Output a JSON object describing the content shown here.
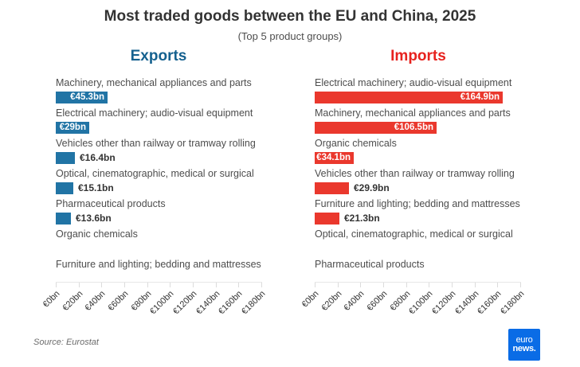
{
  "header": {
    "title": "Most traded goods between the EU and China, 2025",
    "subtitle": "(Top 5 product groups)"
  },
  "source": "Source: Eurostat",
  "logo": {
    "line1": "euro",
    "line2": "news.",
    "background": "#0a6ce6"
  },
  "colors": {
    "export_bar": "#2174a5",
    "export_heading": "#15618f",
    "import_bar": "#ea382d",
    "import_heading": "#e7221e",
    "title_text": "#333333",
    "category_text": "#4d4d4d",
    "axis_line": "#e7e7e7"
  },
  "chart_data": {
    "type": "bar",
    "orientation": "horizontal",
    "unit": "€bn",
    "xlim": [
      0,
      180
    ],
    "grid": false,
    "legend_position": "none",
    "axis": {
      "tick_values": [
        0,
        20,
        40,
        60,
        80,
        100,
        120,
        140,
        160,
        180
      ],
      "tick_labels": [
        "€0bn",
        "€20bn",
        "€40bn",
        "€60bn",
        "€80bn",
        "€100bn",
        "€120bn",
        "€140bn",
        "€160bn",
        "€180bn"
      ]
    },
    "charts": [
      {
        "name": "Exports",
        "heading_color": "#15618f",
        "bar_color": "#2174a5",
        "items": [
          {
            "label": "Machinery, mechanical appliances and parts",
            "value": 45.3,
            "value_label": "€45.3bn",
            "label_inside": true
          },
          {
            "label": "Electrical machinery; audio-visual equipment",
            "value": 29,
            "value_label": "€29bn",
            "label_inside": true
          },
          {
            "label": "Vehicles other than railway or tramway rolling",
            "value": 16.4,
            "value_label": "€16.4bn",
            "label_inside": false
          },
          {
            "label": "Optical, cinematographic, medical or surgical",
            "value": 15.1,
            "value_label": "€15.1bn",
            "label_inside": false
          },
          {
            "label": "Pharmaceutical products",
            "value": 13.6,
            "value_label": "€13.6bn",
            "label_inside": false
          },
          {
            "label": "Organic chemicals",
            "value": null,
            "value_label": "",
            "label_inside": false
          },
          {
            "label": "Furniture and lighting; bedding and mattresses",
            "value": null,
            "value_label": "",
            "label_inside": false
          }
        ]
      },
      {
        "name": "Imports",
        "heading_color": "#e7221e",
        "bar_color": "#ea382d",
        "items": [
          {
            "label": "Electrical machinery; audio-visual equipment",
            "value": 164.9,
            "value_label": "€164.9bn",
            "label_inside": true
          },
          {
            "label": "Machinery, mechanical appliances and parts",
            "value": 106.5,
            "value_label": "€106.5bn",
            "label_inside": true
          },
          {
            "label": "Organic chemicals",
            "value": 34.1,
            "value_label": "€34.1bn",
            "label_inside": true
          },
          {
            "label": "Vehicles other than railway or tramway rolling",
            "value": 29.9,
            "value_label": "€29.9bn",
            "label_inside": false
          },
          {
            "label": "Furniture and lighting; bedding and mattresses",
            "value": 21.3,
            "value_label": "€21.3bn",
            "label_inside": false
          },
          {
            "label": "Optical, cinematographic, medical or surgical",
            "value": null,
            "value_label": "",
            "label_inside": false
          },
          {
            "label": "Pharmaceutical products",
            "value": null,
            "value_label": "",
            "label_inside": false
          }
        ]
      }
    ]
  }
}
